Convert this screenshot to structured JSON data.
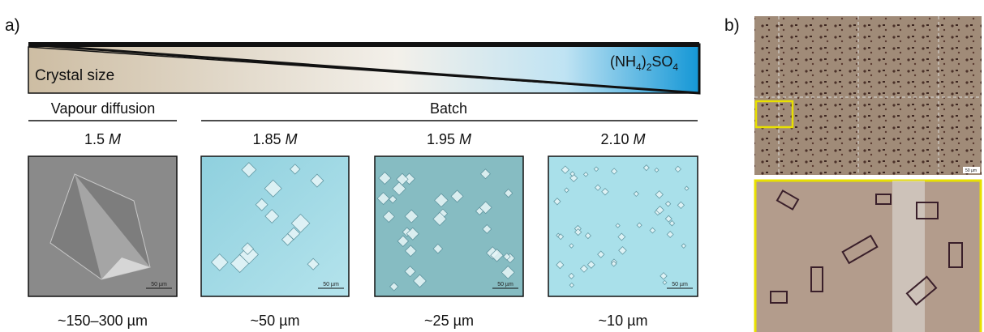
{
  "panel_a": {
    "label": "a)",
    "gradient": {
      "left_text": "Crystal size",
      "formula": [
        "(NH",
        "4",
        ")",
        "2",
        "SO",
        "4"
      ]
    },
    "groups": [
      "Vapour diffusion",
      "Batch"
    ],
    "panels": [
      {
        "concentration": "1.5",
        "unit": "M",
        "scale_bar": "50 µm",
        "size": "~150–300 µm"
      },
      {
        "concentration": "1.85",
        "unit": "M",
        "scale_bar": "50 µm",
        "size": "~50 µm"
      },
      {
        "concentration": "1.95",
        "unit": "M",
        "scale_bar": "50 µm",
        "size": "~25 µm"
      },
      {
        "concentration": "2.10",
        "unit": "M",
        "scale_bar": "50 µm",
        "size": "~10 µm"
      }
    ]
  },
  "panel_b": {
    "label": "b)",
    "scale_bar": "50 µm"
  }
}
